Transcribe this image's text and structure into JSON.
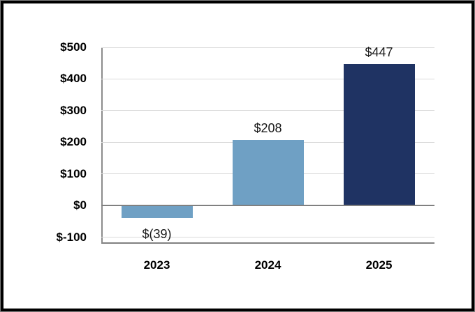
{
  "window": {
    "background_color": "#FFFFFF",
    "frame_border_color": "#000000",
    "frame_outline_color": "#808080"
  },
  "chart_data": {
    "type": "bar",
    "title": "",
    "xlabel": "",
    "ylabel": "",
    "categories": [
      "2023",
      "2024",
      "2025"
    ],
    "values": [
      -39,
      208,
      447
    ],
    "data_labels": [
      "$(39)",
      "$208",
      "$447"
    ],
    "bar_colors": [
      "#6FA0C4",
      "#6FA0C4",
      "#1F3363"
    ],
    "y_ticks": [
      500,
      400,
      300,
      200,
      100,
      0,
      -100
    ],
    "y_tick_labels": [
      "$500",
      "$400",
      "$300",
      "$200",
      "$100",
      "$0",
      "$-100"
    ],
    "ylim": [
      -120,
      500
    ],
    "grid": "horizontal",
    "gridline_color": "#D9D9D9",
    "zero_line_color": "#808080",
    "y_axis_line_color": "#8C8C8C",
    "plot_bottom_border_color": "#808080",
    "tick_label_color": "#000000",
    "data_label_color": "#1A1A1A",
    "legend_position": "none"
  }
}
